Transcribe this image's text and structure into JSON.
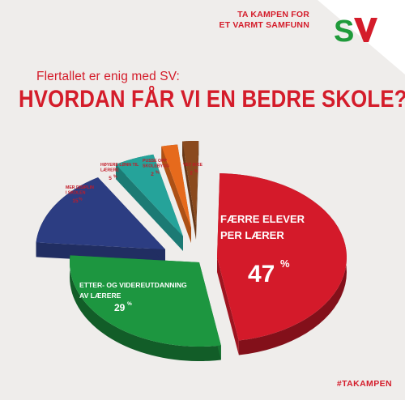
{
  "campaign": {
    "line1": "TA KAMPEN FOR",
    "line2": "ET VARMT SAMFUNN",
    "logo_text": "SV"
  },
  "header": {
    "subtitle": "Flertallet er enig med SV:",
    "title": "HVORDAN FÅR VI EN BEDRE SKOLE?"
  },
  "hashtag": "#TAKAMPEN",
  "colors": {
    "accent": "#d41c2a",
    "background": "#efedeb",
    "logo_green": "#1f9a3a"
  },
  "chart_data": {
    "type": "pie",
    "title": "HVORDAN FÅR VI EN BEDRE SKOLE?",
    "slices": [
      {
        "label": "FÆRRE ELEVER PER LÆRER",
        "value": 47,
        "color": "#d41a2a"
      },
      {
        "label": "ETTER- OG VIDEREUTDANNING AV LÆRERE",
        "value": 29,
        "color": "#1d9640"
      },
      {
        "label": "MER DISIPLIN I SKOLEN",
        "value": 15,
        "color": "#2c3d82"
      },
      {
        "label": "HØYERE LØNN TIL LÆRERE",
        "value": 5,
        "color": "#25a39a"
      },
      {
        "label": "PUSSE OPP SKOLEBYGG",
        "value": 2,
        "color": "#e66a1c"
      },
      {
        "label": "VET IKKE",
        "value": 2,
        "color": "#8a4a1e"
      }
    ],
    "unit": "%"
  }
}
